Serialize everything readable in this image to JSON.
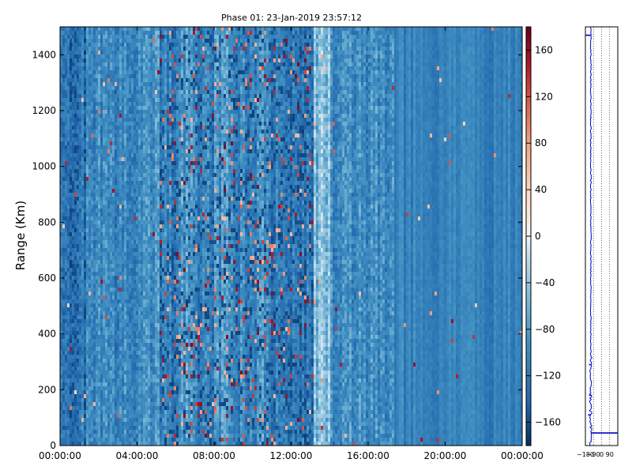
{
  "chart_data": [
    {
      "type": "heatmap",
      "title": "Phase 01: 23-Jan-2019 23:57:12",
      "xlabel": "",
      "ylabel": "Range (Km)",
      "x_ticks": [
        "00:00:00",
        "04:00:00",
        "08:00:00",
        "12:00:00",
        "16:00:00",
        "20:00:00",
        "00:00:00"
      ],
      "y_ticks": [
        0,
        200,
        400,
        600,
        800,
        1000,
        1200,
        1400
      ],
      "ylim": [
        0,
        1500
      ],
      "x_hours_range": [
        0,
        24
      ],
      "colorbar": {
        "ticks": [
          160,
          120,
          80,
          40,
          0,
          -40,
          -80,
          -120,
          -160
        ],
        "range": [
          -180,
          180
        ],
        "colormap": "RdBu_r"
      },
      "column_profile_hours": [
        {
          "h0": 0.0,
          "h1": 1.4,
          "value": -125
        },
        {
          "h0": 1.4,
          "h1": 3.6,
          "value": -108
        },
        {
          "h0": 3.6,
          "h1": 5.2,
          "value": -100
        },
        {
          "h0": 5.2,
          "h1": 6.2,
          "value": -112
        },
        {
          "h0": 6.2,
          "h1": 7.0,
          "value": -90
        },
        {
          "h0": 7.0,
          "h1": 8.0,
          "value": -112
        },
        {
          "h0": 8.0,
          "h1": 9.0,
          "value": -92
        },
        {
          "h0": 9.0,
          "h1": 10.2,
          "value": -110
        },
        {
          "h0": 10.2,
          "h1": 11.0,
          "value": -95
        },
        {
          "h0": 11.0,
          "h1": 13.2,
          "value": -120
        },
        {
          "h0": 13.2,
          "h1": 14.0,
          "value": -55
        },
        {
          "h0": 14.0,
          "h1": 17.4,
          "value": -100
        },
        {
          "h0": 17.4,
          "h1": 24.0,
          "value": -112
        }
      ]
    },
    {
      "type": "line",
      "title": "",
      "x_ticks": [
        "-180",
        "-90",
        "0",
        "90"
      ],
      "xlim": [
        -180,
        180
      ],
      "ylim": [
        0,
        1500
      ],
      "color": "#0000cc",
      "spikes": [
        {
          "range": 1470,
          "value": -175
        },
        {
          "range": 290,
          "value": -140
        },
        {
          "range": 180,
          "value": -140
        },
        {
          "range": 110,
          "value": -150
        },
        {
          "range": 45,
          "value": 180
        }
      ]
    }
  ]
}
